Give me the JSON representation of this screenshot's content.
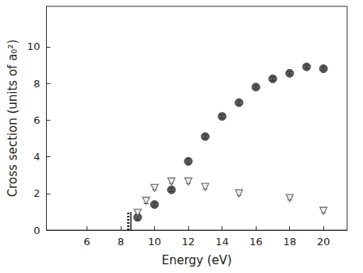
{
  "chart_data": {
    "type": "scatter",
    "x_label": "Energy (eV)",
    "y_label": "Cross section (units of a₀²)",
    "xlim": [
      3.6,
      21.4
    ],
    "xticks": [
      6,
      8,
      10,
      12,
      14,
      16,
      18,
      20
    ],
    "ylim": [
      0,
      12.2
    ],
    "yticks": [
      0,
      2,
      4,
      6,
      8,
      10
    ],
    "grid": false,
    "series": [
      {
        "type": "scatter",
        "marker": "circle",
        "color": "#333333",
        "x": [
          9,
          10,
          11,
          12,
          13,
          14,
          15,
          16,
          17,
          18,
          19,
          20
        ],
        "values": [
          0.7,
          1.4,
          2.2,
          3.75,
          5.1,
          6.2,
          6.95,
          7.8,
          8.25,
          8.55,
          8.9,
          8.8
        ],
        "errors": [
          0.15,
          0.1,
          0.1,
          0.15,
          0.1,
          0.1,
          0.1,
          0.1,
          0.1,
          0.1,
          0.1,
          0.1
        ]
      },
      {
        "type": "scatter",
        "marker": "inverted_triangle_open",
        "color": "#555555",
        "x": [
          9,
          9.5,
          10,
          11,
          12,
          13,
          15,
          18,
          20
        ],
        "values": [
          0.95,
          1.6,
          2.3,
          2.65,
          2.65,
          2.35,
          2.0,
          1.75,
          1.05
        ],
        "errors": [
          0.1,
          0.15,
          0.1,
          0.1,
          0.1,
          0.1,
          0.1,
          0.1,
          0.1
        ]
      },
      {
        "type": "line",
        "line_style": "dotted",
        "color": "#222222",
        "x": [
          8.45,
          8.45
        ],
        "values": [
          0,
          1
        ]
      },
      {
        "type": "line",
        "line_style": "solid",
        "color": "#222222",
        "x": [
          8.6,
          8.6
        ],
        "values": [
          0,
          1
        ]
      }
    ]
  }
}
